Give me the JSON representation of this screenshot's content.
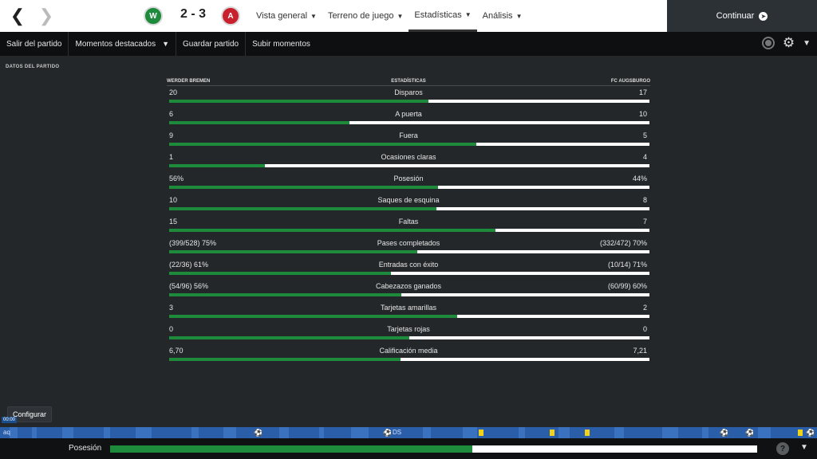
{
  "header": {
    "back_icon": "chevron-left-icon",
    "forward_icon": "chevron-right-icon",
    "home_crest_letter": "W",
    "away_crest_letter": "A",
    "score": "2 - 3",
    "menu": [
      {
        "label": "Vista general"
      },
      {
        "label": "Terreno de juego"
      },
      {
        "label": "Estadísticas"
      },
      {
        "label": "Análisis"
      }
    ],
    "continue_label": "Continuar"
  },
  "toolbar": {
    "exit_label": "Salir del partido",
    "highlights_label": "Momentos destacados",
    "save_label": "Guardar partido",
    "upload_label": "Subir momentos"
  },
  "stats": {
    "section_title": "DATOS DEL PARTIDO",
    "home_team": "WERDER BREMEN",
    "center_title": "ESTADÍSTICAS",
    "away_team": "FC AUGSBURGO",
    "rows": [
      {
        "label": "Disparos",
        "home": "20",
        "away": "17",
        "home_share": 0.54
      },
      {
        "label": "A puerta",
        "home": "6",
        "away": "10",
        "home_share": 0.375
      },
      {
        "label": "Fuera",
        "home": "9",
        "away": "5",
        "home_share": 0.64
      },
      {
        "label": "Ocasiones claras",
        "home": "1",
        "away": "4",
        "home_share": 0.2
      },
      {
        "label": "Posesión",
        "home": "56%",
        "away": "44%",
        "home_share": 0.56
      },
      {
        "label": "Saques de esquina",
        "home": "10",
        "away": "8",
        "home_share": 0.556
      },
      {
        "label": "Faltas",
        "home": "15",
        "away": "7",
        "home_share": 0.68
      },
      {
        "label": "Pases completados",
        "home": "(399/528) 75%",
        "away": "(332/472) 70%",
        "home_share": 0.517
      },
      {
        "label": "Entradas con éxito",
        "home": "(22/36) 61%",
        "away": "(10/14) 71%",
        "home_share": 0.462
      },
      {
        "label": "Cabezazos ganados",
        "home": "(54/96) 56%",
        "away": "(60/99) 60%",
        "home_share": 0.483
      },
      {
        "label": "Tarjetas amarillas",
        "home": "3",
        "away": "2",
        "home_share": 0.6
      },
      {
        "label": "Tarjetas rojas",
        "home": "0",
        "away": "0",
        "home_share": 0.5
      },
      {
        "label": "Calificación media",
        "home": "6,70",
        "away": "7,21",
        "home_share": 0.482
      }
    ]
  },
  "bottom": {
    "configure_label": "Configurar",
    "time": "00:00",
    "timeline_left_text": "aq",
    "timeline_mid_text": "DS",
    "possession_label": "Posesión",
    "possession_home_share": 0.56,
    "help_glyph": "?"
  },
  "colors": {
    "home_bar": "#1e8a3c",
    "away_bar": "#ffffff",
    "background": "#24272a",
    "timeline": "#2a5ea8"
  }
}
